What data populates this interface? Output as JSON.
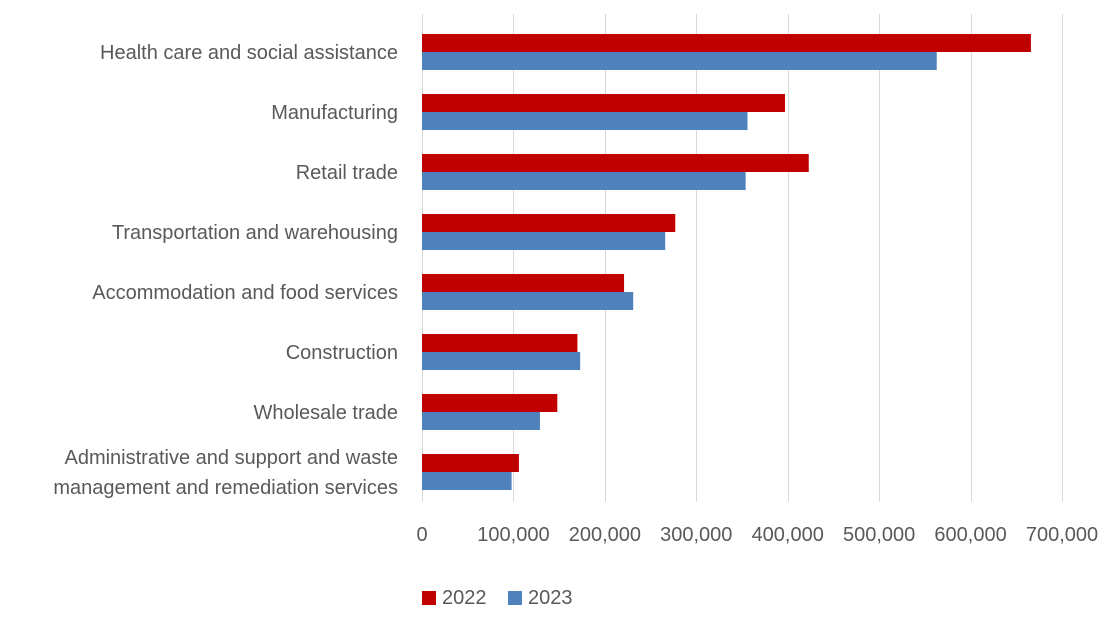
{
  "chart_data": {
    "type": "bar",
    "orientation": "horizontal",
    "title": "",
    "xlabel": "",
    "ylabel": "",
    "categories": [
      "Health care and social assistance",
      "Manufacturing",
      "Retail trade",
      "Transportation and warehousing",
      "Accommodation and food services",
      "Construction",
      "Wholesale trade",
      "Administrative and support and waste management and remediation services"
    ],
    "category_lines": [
      [
        "Health care and social assistance"
      ],
      [
        "Manufacturing"
      ],
      [
        "Retail trade"
      ],
      [
        "Transportation and warehousing"
      ],
      [
        "Accommodation and food services"
      ],
      [
        "Construction"
      ],
      [
        "Wholesale trade"
      ],
      [
        "Administrative and support and waste",
        "management and remediation services"
      ]
    ],
    "series": [
      {
        "name": "2022",
        "color": "#C00000",
        "values": [
          666000,
          397000,
          423000,
          277000,
          221000,
          170000,
          148000,
          106000
        ]
      },
      {
        "name": "2023",
        "color": "#4F81BD",
        "values": [
          563000,
          356000,
          354000,
          266000,
          231000,
          173000,
          129000,
          98000
        ]
      }
    ],
    "xlim": [
      0,
      700000
    ],
    "xticks": [
      0,
      100000,
      200000,
      300000,
      400000,
      500000,
      600000,
      700000
    ],
    "xtick_labels": [
      "0",
      "100,000",
      "200,000",
      "300,000",
      "400,000",
      "500,000",
      "600,000",
      "700,000"
    ],
    "grid": true,
    "grid_color": "#D9D9D9",
    "legend_position": "bottom"
  }
}
